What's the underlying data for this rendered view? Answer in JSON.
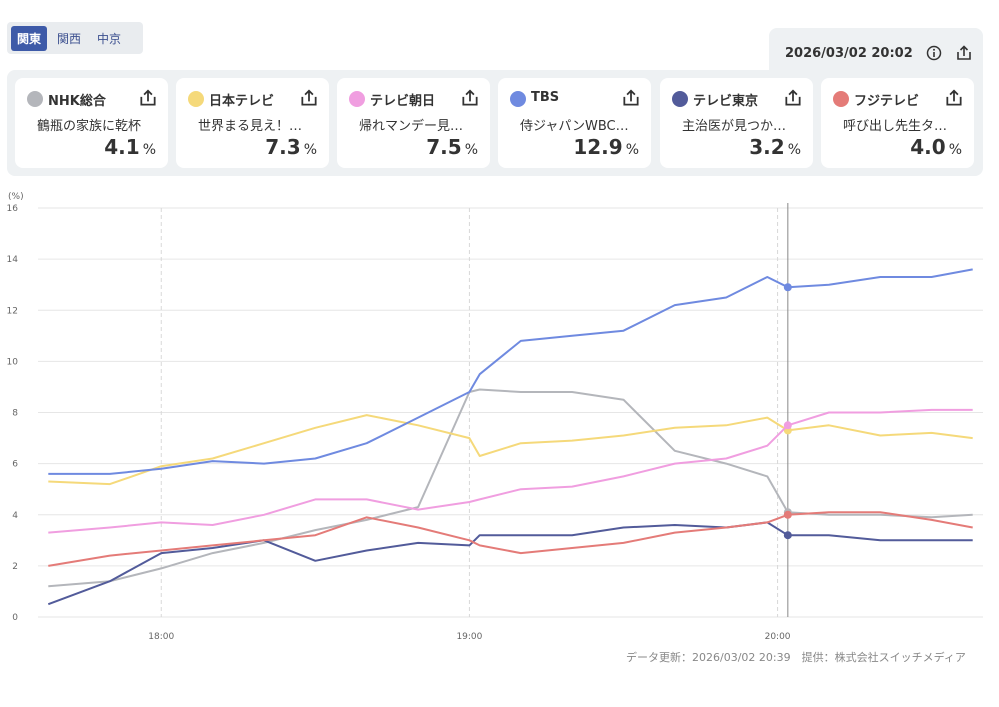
{
  "tabs": [
    "関東",
    "関西",
    "中京"
  ],
  "active_tab": 0,
  "updated_time": "2026/03/02 20:02",
  "channels": [
    {
      "name": "NHK総合",
      "program": "鶴瓶の家族に乾杯",
      "rating": "4.1",
      "unit": "%",
      "color": "#b4b6bb"
    },
    {
      "name": "日本テレビ",
      "program": "世界まる見え！…",
      "rating": "7.3",
      "unit": "%",
      "color": "#f5d97a"
    },
    {
      "name": "テレビ朝日",
      "program": "帰れマンデー見…",
      "rating": "7.5",
      "unit": "%",
      "color": "#f09ee0"
    },
    {
      "name": "TBS",
      "program": "侍ジャパンWBC…",
      "rating": "12.9",
      "unit": "%",
      "color": "#6f8ae0"
    },
    {
      "name": "テレビ東京",
      "program": "主治医が見つか…",
      "rating": "3.2",
      "unit": "%",
      "color": "#525b9a"
    },
    {
      "name": "フジテレビ",
      "program": "呼び出し先生タ…",
      "rating": "4.0",
      "unit": "%",
      "color": "#e47b78"
    }
  ],
  "footer": "データ更新：2026/03/02 20:39　提供：株式会社スイッチメディア",
  "chart_data": {
    "type": "line",
    "ylabel": "(%)",
    "ylim": [
      0,
      16
    ],
    "yticks": [
      0,
      2,
      4,
      6,
      8,
      10,
      12,
      14,
      16
    ],
    "xlim": [
      "17:36",
      "20:40"
    ],
    "xticks": [
      "18:00",
      "19:00",
      "20:00"
    ],
    "current_time": "20:02",
    "x": [
      "17:38",
      "17:50",
      "18:00",
      "18:10",
      "18:20",
      "18:30",
      "18:40",
      "18:50",
      "19:00",
      "19:02",
      "19:10",
      "19:20",
      "19:30",
      "19:40",
      "19:50",
      "19:58",
      "20:02",
      "20:10",
      "20:20",
      "20:30",
      "20:38"
    ],
    "series": [
      {
        "name": "NHK総合",
        "color": "#b4b6bb",
        "values": [
          1.2,
          1.4,
          1.9,
          2.5,
          2.9,
          3.4,
          3.8,
          4.3,
          8.8,
          8.9,
          8.8,
          8.8,
          8.5,
          6.5,
          6.0,
          5.5,
          4.1,
          4.0,
          4.0,
          3.9,
          4.0
        ]
      },
      {
        "name": "日本テレビ",
        "color": "#f5d97a",
        "values": [
          5.3,
          5.2,
          5.9,
          6.2,
          6.8,
          7.4,
          7.9,
          7.5,
          7.0,
          6.3,
          6.8,
          6.9,
          7.1,
          7.4,
          7.5,
          7.8,
          7.3,
          7.5,
          7.1,
          7.2,
          7.0
        ]
      },
      {
        "name": "テレビ朝日",
        "color": "#f09ee0",
        "values": [
          3.3,
          3.5,
          3.7,
          3.6,
          4.0,
          4.6,
          4.6,
          4.2,
          4.5,
          4.6,
          5.0,
          5.1,
          5.5,
          6.0,
          6.2,
          6.7,
          7.5,
          8.0,
          8.0,
          8.1,
          8.1
        ]
      },
      {
        "name": "TBS",
        "color": "#6f8ae0",
        "values": [
          5.6,
          5.6,
          5.8,
          6.1,
          6.0,
          6.2,
          6.8,
          7.8,
          8.8,
          9.5,
          10.8,
          11.0,
          11.2,
          12.2,
          12.5,
          13.3,
          12.9,
          13.0,
          13.3,
          13.3,
          13.6
        ]
      },
      {
        "name": "テレビ東京",
        "color": "#525b9a",
        "values": [
          0.5,
          1.4,
          2.5,
          2.7,
          3.0,
          2.2,
          2.6,
          2.9,
          2.8,
          3.2,
          3.2,
          3.2,
          3.5,
          3.6,
          3.5,
          3.7,
          3.2,
          3.2,
          3.0,
          3.0,
          3.0
        ]
      },
      {
        "name": "フジテレビ",
        "color": "#e47b78",
        "values": [
          2.0,
          2.4,
          2.6,
          2.8,
          3.0,
          3.2,
          3.9,
          3.5,
          3.0,
          2.8,
          2.5,
          2.7,
          2.9,
          3.3,
          3.5,
          3.7,
          4.0,
          4.1,
          4.1,
          3.8,
          3.5
        ]
      }
    ]
  }
}
